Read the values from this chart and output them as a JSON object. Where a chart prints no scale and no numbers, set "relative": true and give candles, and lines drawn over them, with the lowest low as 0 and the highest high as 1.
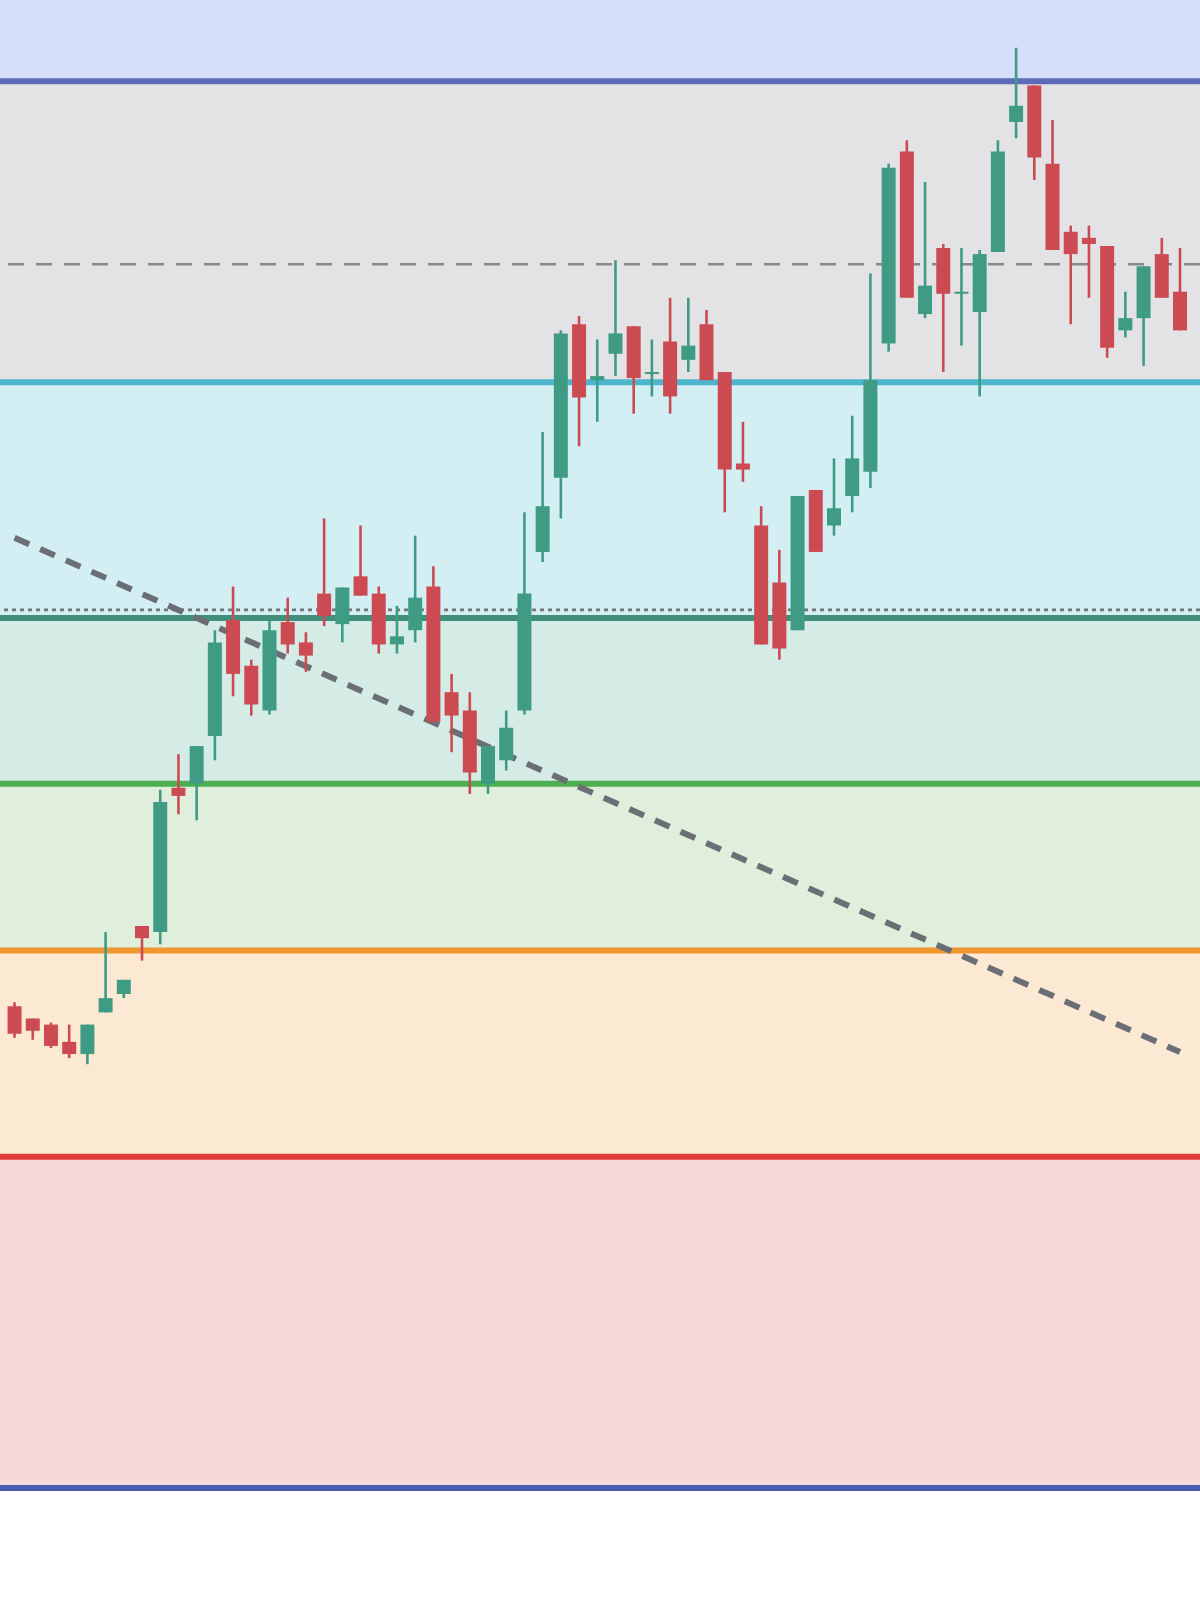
{
  "chart_data": {
    "type": "candlestick",
    "relative": true,
    "categories": [
      null,
      null,
      null,
      null,
      null,
      null,
      null,
      null,
      null,
      null,
      null,
      null,
      null,
      null,
      null,
      null,
      null,
      null,
      null,
      null,
      null,
      null,
      null,
      null,
      null,
      null,
      null,
      null,
      null,
      null,
      null,
      null,
      null,
      null,
      null,
      null,
      null,
      null,
      null,
      null,
      null,
      null,
      null,
      null,
      null,
      null,
      null,
      null,
      null,
      null,
      null,
      null,
      null,
      null,
      null,
      null,
      null,
      null,
      null,
      null,
      null,
      null,
      null,
      null,
      null
    ],
    "ohlc": [
      [
        0.057,
        0.061,
        0.026,
        0.03
      ],
      [
        0.045,
        0.045,
        0.024,
        0.033
      ],
      [
        0.039,
        0.041,
        0.016,
        0.018
      ],
      [
        0.022,
        0.039,
        0.006,
        0.01
      ],
      [
        0.01,
        0.039,
        0,
        0.039
      ],
      [
        0.051,
        0.13,
        0.051,
        0.065
      ],
      [
        0.069,
        0.083,
        0.065,
        0.083
      ],
      [
        0.136,
        0.136,
        0.102,
        0.124
      ],
      [
        0.13,
        0.27,
        0.118,
        0.258
      ],
      [
        0.272,
        0.305,
        0.246,
        0.264
      ],
      [
        0.276,
        0.313,
        0.24,
        0.313
      ],
      [
        0.323,
        0.427,
        0.299,
        0.415
      ],
      [
        0.437,
        0.47,
        0.362,
        0.384
      ],
      [
        0.392,
        0.398,
        0.343,
        0.354
      ],
      [
        0.348,
        0.437,
        0.344,
        0.427
      ],
      [
        0.435,
        0.459,
        0.404,
        0.413
      ],
      [
        0.415,
        0.425,
        0.386,
        0.402
      ],
      [
        0.463,
        0.537,
        0.431,
        0.441
      ],
      [
        0.433,
        0.469,
        0.415,
        0.469
      ],
      [
        0.48,
        0.53,
        0.461,
        0.461
      ],
      [
        0.463,
        0.47,
        0.404,
        0.413
      ],
      [
        0.413,
        0.451,
        0.404,
        0.421
      ],
      [
        0.427,
        0.52,
        0.415,
        0.459
      ],
      [
        0.47,
        0.49,
        0.337,
        0.337
      ],
      [
        0.366,
        0.384,
        0.307,
        0.343
      ],
      [
        0.348,
        0.366,
        0.266,
        0.287
      ],
      [
        0.276,
        0.313,
        0.266,
        0.313
      ],
      [
        0.299,
        0.348,
        0.289,
        0.331
      ],
      [
        0.348,
        0.543,
        0.344,
        0.463
      ],
      [
        0.504,
        0.622,
        0.494,
        0.549
      ],
      [
        0.577,
        0.722,
        0.537,
        0.719
      ],
      [
        0.728,
        0.736,
        0.608,
        0.656
      ],
      [
        0.673,
        0.713,
        0.632,
        0.677
      ],
      [
        0.699,
        0.791,
        0.677,
        0.719
      ],
      [
        0.726,
        0.726,
        0.64,
        0.675
      ],
      [
        0.679,
        0.713,
        0.657,
        0.681
      ],
      [
        0.711,
        0.754,
        0.64,
        0.657
      ],
      [
        0.693,
        0.754,
        0.681,
        0.707
      ],
      [
        0.728,
        0.742,
        0.673,
        0.673
      ],
      [
        0.681,
        0.681,
        0.543,
        0.585
      ],
      [
        0.591,
        0.632,
        0.573,
        0.585
      ],
      [
        0.53,
        0.549,
        0.413,
        0.413
      ],
      [
        0.474,
        0.506,
        0.398,
        0.409
      ],
      [
        0.427,
        0.559,
        0.427,
        0.559
      ],
      [
        0.565,
        0.565,
        0.504,
        0.504
      ],
      [
        0.53,
        0.596,
        0.52,
        0.547
      ],
      [
        0.559,
        0.638,
        0.543,
        0.596
      ],
      [
        0.583,
        0.778,
        0.567,
        0.673
      ],
      [
        0.709,
        0.886,
        0.701,
        0.882
      ],
      [
        0.898,
        0.909,
        0.754,
        0.754
      ],
      [
        0.738,
        0.868,
        0.734,
        0.766
      ],
      [
        0.803,
        0.807,
        0.681,
        0.758
      ],
      [
        0.758,
        0.803,
        0.707,
        0.76
      ],
      [
        0.74,
        0.801,
        0.657,
        0.797
      ],
      [
        0.799,
        0.909,
        0.799,
        0.898
      ],
      [
        0.927,
        1,
        0.911,
        0.943
      ],
      [
        0.963,
        0.963,
        0.87,
        0.892
      ],
      [
        0.886,
        0.929,
        0.801,
        0.801
      ],
      [
        0.819,
        0.825,
        0.728,
        0.797
      ],
      [
        0.813,
        0.825,
        0.754,
        0.807
      ],
      [
        0.805,
        0.805,
        0.695,
        0.705
      ],
      [
        0.722,
        0.76,
        0.715,
        0.734
      ],
      [
        0.734,
        0.785,
        0.687,
        0.785
      ],
      [
        0.797,
        0.813,
        0.754,
        0.754
      ],
      [
        0.76,
        0.803,
        0.722,
        0.722
      ]
    ],
    "colors": [
      "#cc4b53",
      "#cc4b53",
      "#cc4b53",
      "#cc4b53",
      "#3f9b84",
      "#3f9b84",
      "#3f9b84",
      "#cc4b53",
      "#3f9b84",
      "#cc4b53",
      "#3f9b84",
      "#3f9b84",
      "#cc4b53",
      "#cc4b53",
      "#3f9b84",
      "#cc4b53",
      "#cc4b53",
      "#cc4b53",
      "#3f9b84",
      "#cc4b53",
      "#cc4b53",
      "#3f9b84",
      "#3f9b84",
      "#cc4b53",
      "#cc4b53",
      "#cc4b53",
      "#3f9b84",
      "#3f9b84",
      "#3f9b84",
      "#3f9b84",
      "#3f9b84",
      "#cc4b53",
      "#3f9b84",
      "#3f9b84",
      "#cc4b53",
      "#3f9b84",
      "#cc4b53",
      "#3f9b84",
      "#cc4b53",
      "#cc4b53",
      "#cc4b53",
      "#cc4b53",
      "#cc4b53",
      "#3f9b84",
      "#cc4b53",
      "#3f9b84",
      "#3f9b84",
      "#3f9b84",
      "#3f9b84",
      "#cc4b53",
      "#3f9b84",
      "#cc4b53",
      "#3f9b84",
      "#3f9b84",
      "#3f9b84",
      "#3f9b84",
      "#cc4b53",
      "#cc4b53",
      "#cc4b53",
      "#cc4b53",
      "#cc4b53",
      "#3f9b84",
      "#3f9b84",
      "#cc4b53",
      "#cc4b53"
    ],
    "series": [
      {
        "type": "line",
        "color": "#6b6f75",
        "line_style": "dashed",
        "values": [
          0.518,
          null,
          null,
          null,
          null,
          null,
          null,
          null,
          null,
          null,
          null,
          null,
          null,
          null,
          null,
          null,
          null,
          null,
          null,
          null,
          null,
          null,
          null,
          null,
          null,
          null,
          null,
          null,
          null,
          null,
          null,
          null,
          null,
          null,
          null,
          null,
          null,
          null,
          null,
          null,
          null,
          null,
          null,
          null,
          null,
          null,
          null,
          null,
          null,
          null,
          null,
          null,
          null,
          null,
          null,
          null,
          null,
          null,
          null,
          null,
          null,
          null,
          null,
          null,
          0.012
        ]
      }
    ],
    "bands": [
      {
        "axis": "y",
        "from": 0.967,
        "to": 1.047,
        "color": "#d5defa"
      },
      {
        "axis": "y",
        "from": 0.671,
        "to": 0.967,
        "color": "#e3e3e6"
      },
      {
        "axis": "y",
        "from": 0.439,
        "to": 0.671,
        "color": "#d3eff4"
      },
      {
        "axis": "y",
        "from": 0.276,
        "to": 0.439,
        "color": "#d5ebe5"
      },
      {
        "axis": "y",
        "from": 0.112,
        "to": 0.276,
        "color": "#e0efdc"
      },
      {
        "axis": "y",
        "from": -0.091,
        "to": 0.112,
        "color": "#fce9d4"
      },
      {
        "axis": "y",
        "from": -0.417,
        "to": -0.091,
        "color": "#f6d7da"
      }
    ],
    "ref_lines": [
      {
        "axis": "y",
        "value": 0.967,
        "color": "#5b6bb5",
        "line_style": "solid"
      },
      {
        "axis": "y",
        "value": 0.671,
        "color": "#4db6cc",
        "line_style": "solid"
      },
      {
        "axis": "y",
        "value": 0.439,
        "color": "#3f8f7b",
        "line_style": "solid"
      },
      {
        "axis": "y",
        "value": 0.276,
        "color": "#4caf50",
        "line_style": "solid"
      },
      {
        "axis": "y",
        "value": 0.112,
        "color": "#f0962e",
        "line_style": "solid"
      },
      {
        "axis": "y",
        "value": -0.091,
        "color": "#e03c3c",
        "line_style": "solid"
      },
      {
        "axis": "y",
        "value": -0.417,
        "color": "#4a5cb0",
        "line_style": "solid"
      },
      {
        "axis": "y",
        "value": 0.787,
        "color": "#888888",
        "line_style": "dashed"
      },
      {
        "axis": "y",
        "value": 0.447,
        "color": "#777777",
        "line_style": "dotted"
      }
    ]
  }
}
